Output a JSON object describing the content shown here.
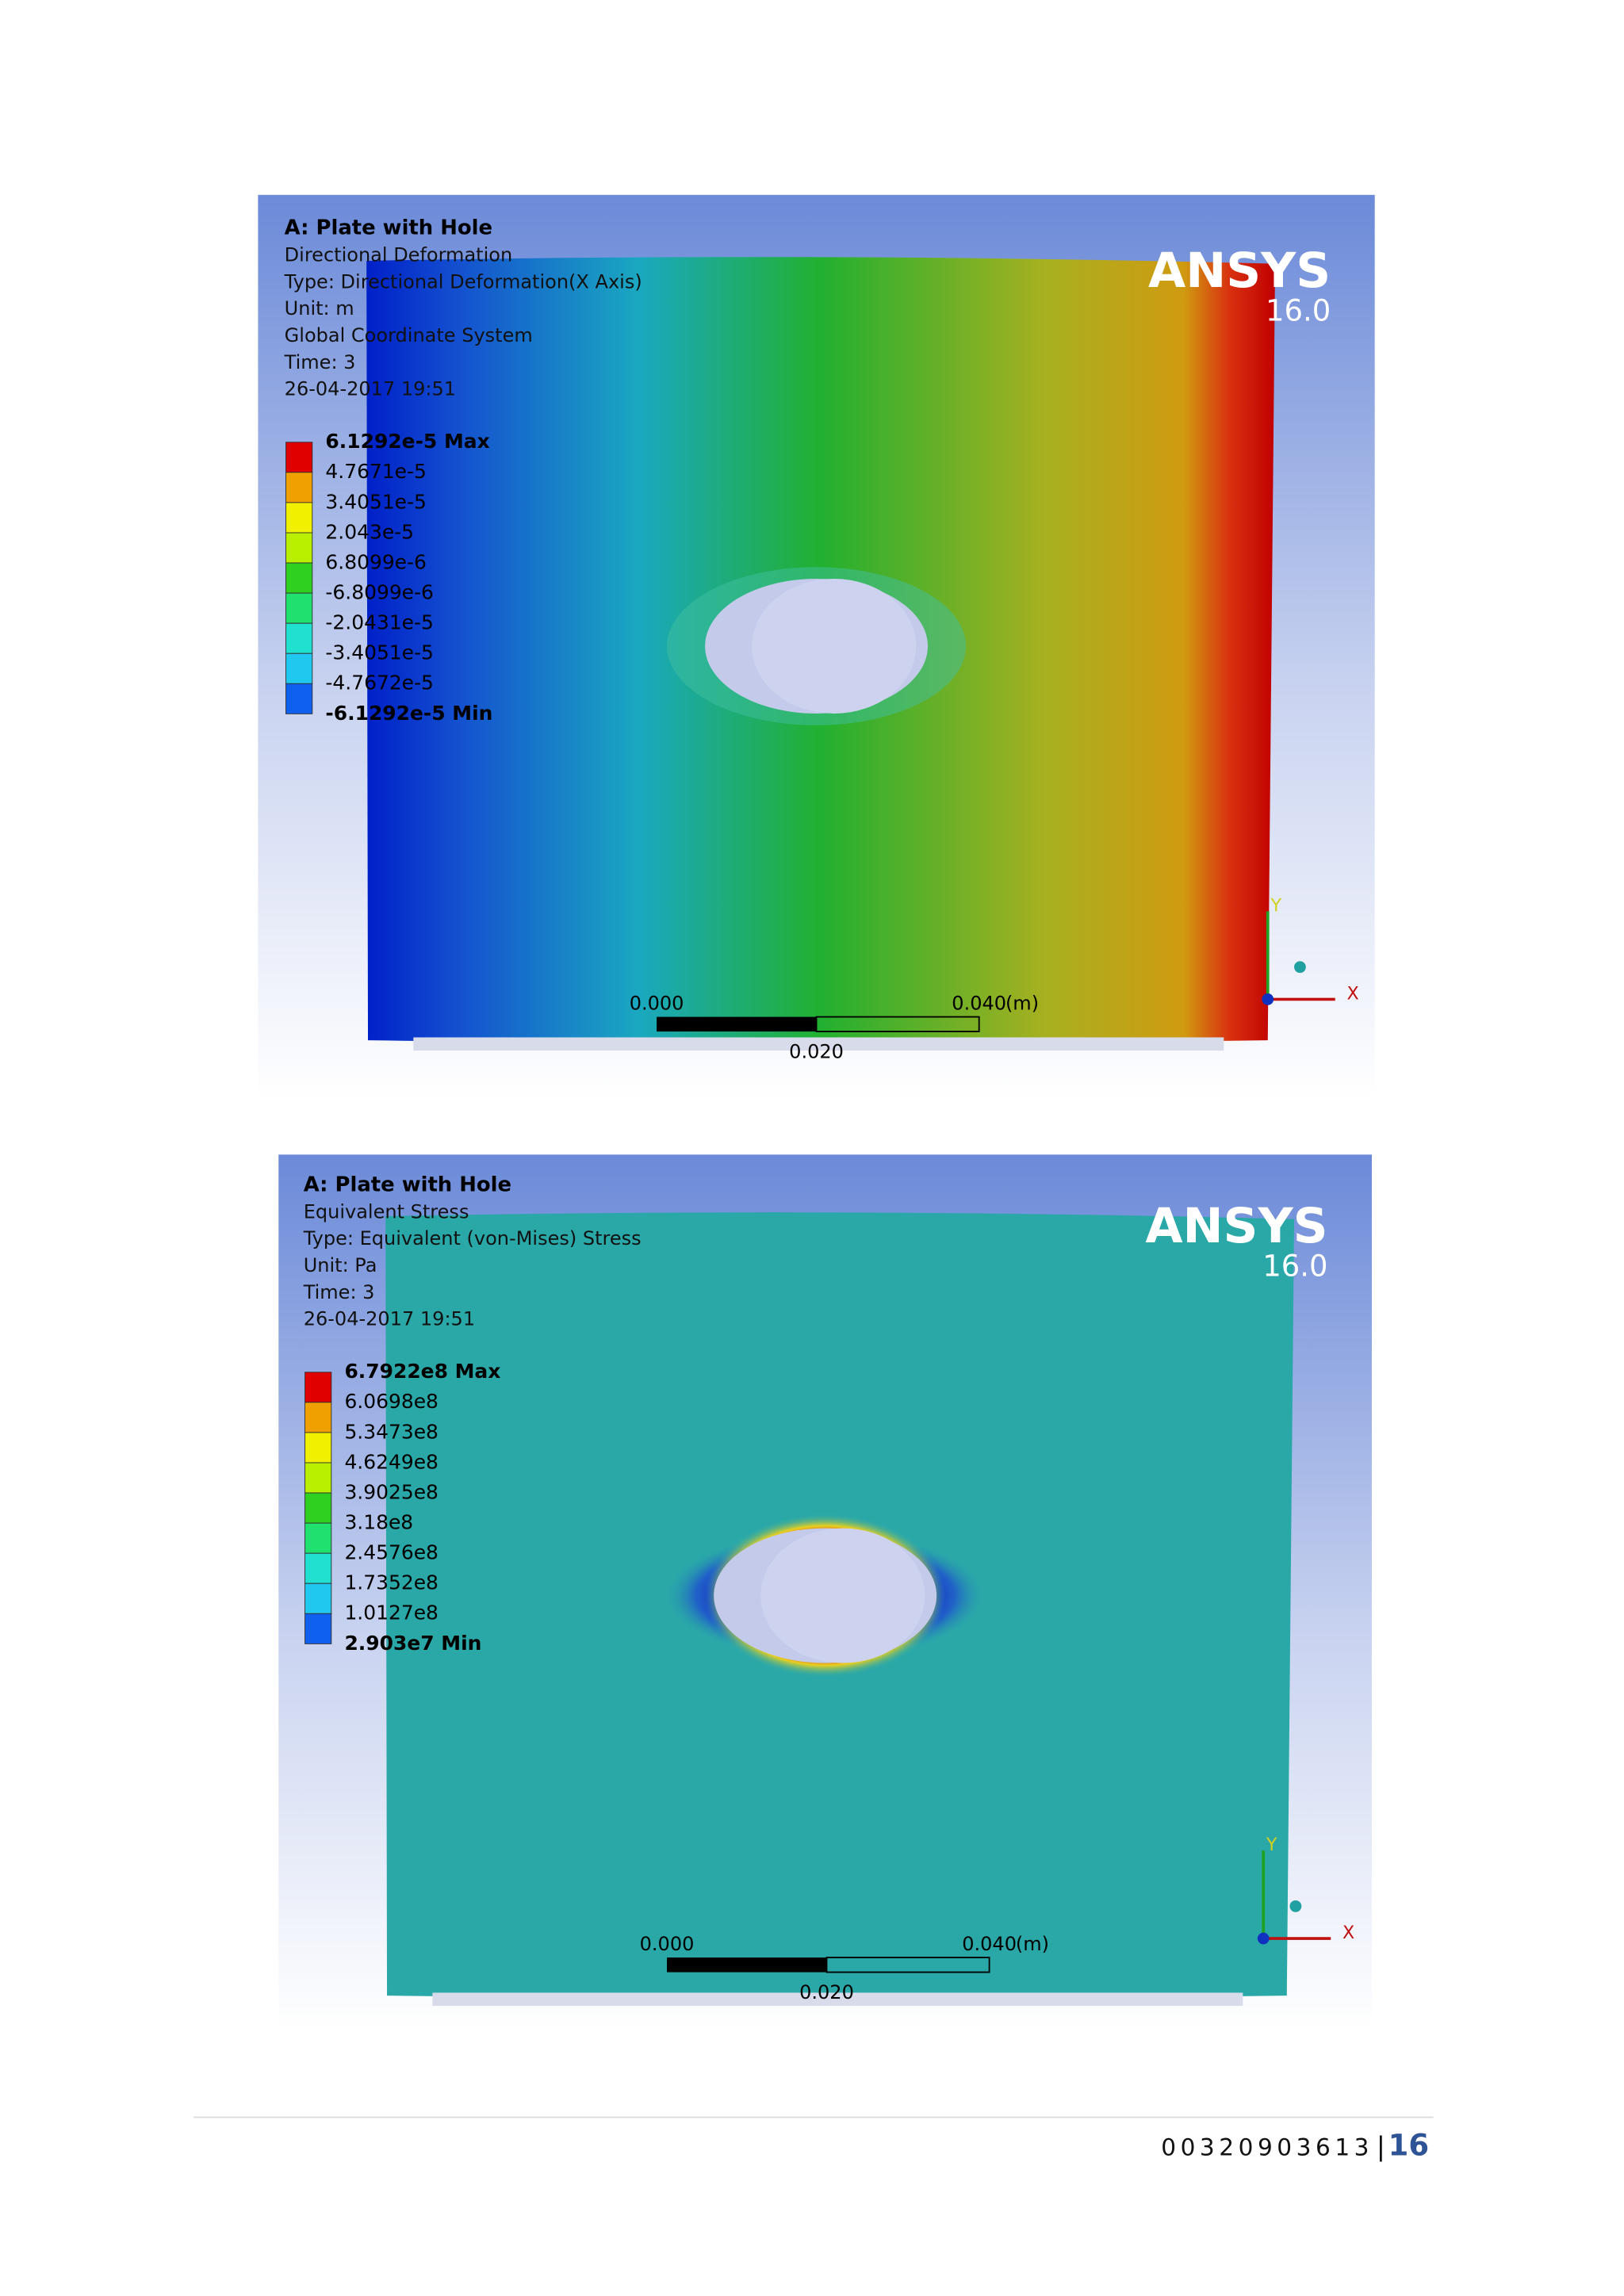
{
  "figures": [
    {
      "header": {
        "title": "A: Plate with Hole",
        "lines": [
          "Directional Deformation",
          "Type: Directional Deformation(X Axis)",
          "Unit: m",
          "Global Coordinate System",
          "Time: 3",
          "26-04-2017 19:51"
        ]
      },
      "brand": {
        "name": "ANSYS",
        "version": "16.0"
      },
      "legend": [
        "6.1292e-5 Max",
        "4.7671e-5",
        "3.4051e-5",
        "2.043e-5",
        "6.8099e-6",
        "-6.8099e-6",
        "-2.0431e-5",
        "-3.4051e-5",
        "-4.7672e-5",
        "-6.1292e-5 Min"
      ],
      "scale": {
        "left": "0.000",
        "right": "0.040",
        "unit": "(m)",
        "mid": "0.020"
      },
      "axes": {
        "y": "Y",
        "x": "X"
      }
    },
    {
      "header": {
        "title": "A: Plate with Hole",
        "lines": [
          "Equivalent Stress",
          "Type: Equivalent (von-Mises) Stress",
          "Unit: Pa",
          "Time: 3",
          "26-04-2017 19:51"
        ]
      },
      "brand": {
        "name": "ANSYS",
        "version": "16.0"
      },
      "legend": [
        "6.7922e8 Max",
        "6.0698e8",
        "5.3473e8",
        "4.6249e8",
        "3.9025e8",
        "3.18e8",
        "2.4576e8",
        "1.7352e8",
        "1.0127e8",
        "2.903e7 Min"
      ],
      "scale": {
        "left": "0.000",
        "right": "0.040",
        "unit": "(m)",
        "mid": "0.020"
      },
      "axes": {
        "y": "Y",
        "x": "X"
      }
    }
  ],
  "footer": {
    "id": "00320903613",
    "separator": "|",
    "page": "16"
  }
}
